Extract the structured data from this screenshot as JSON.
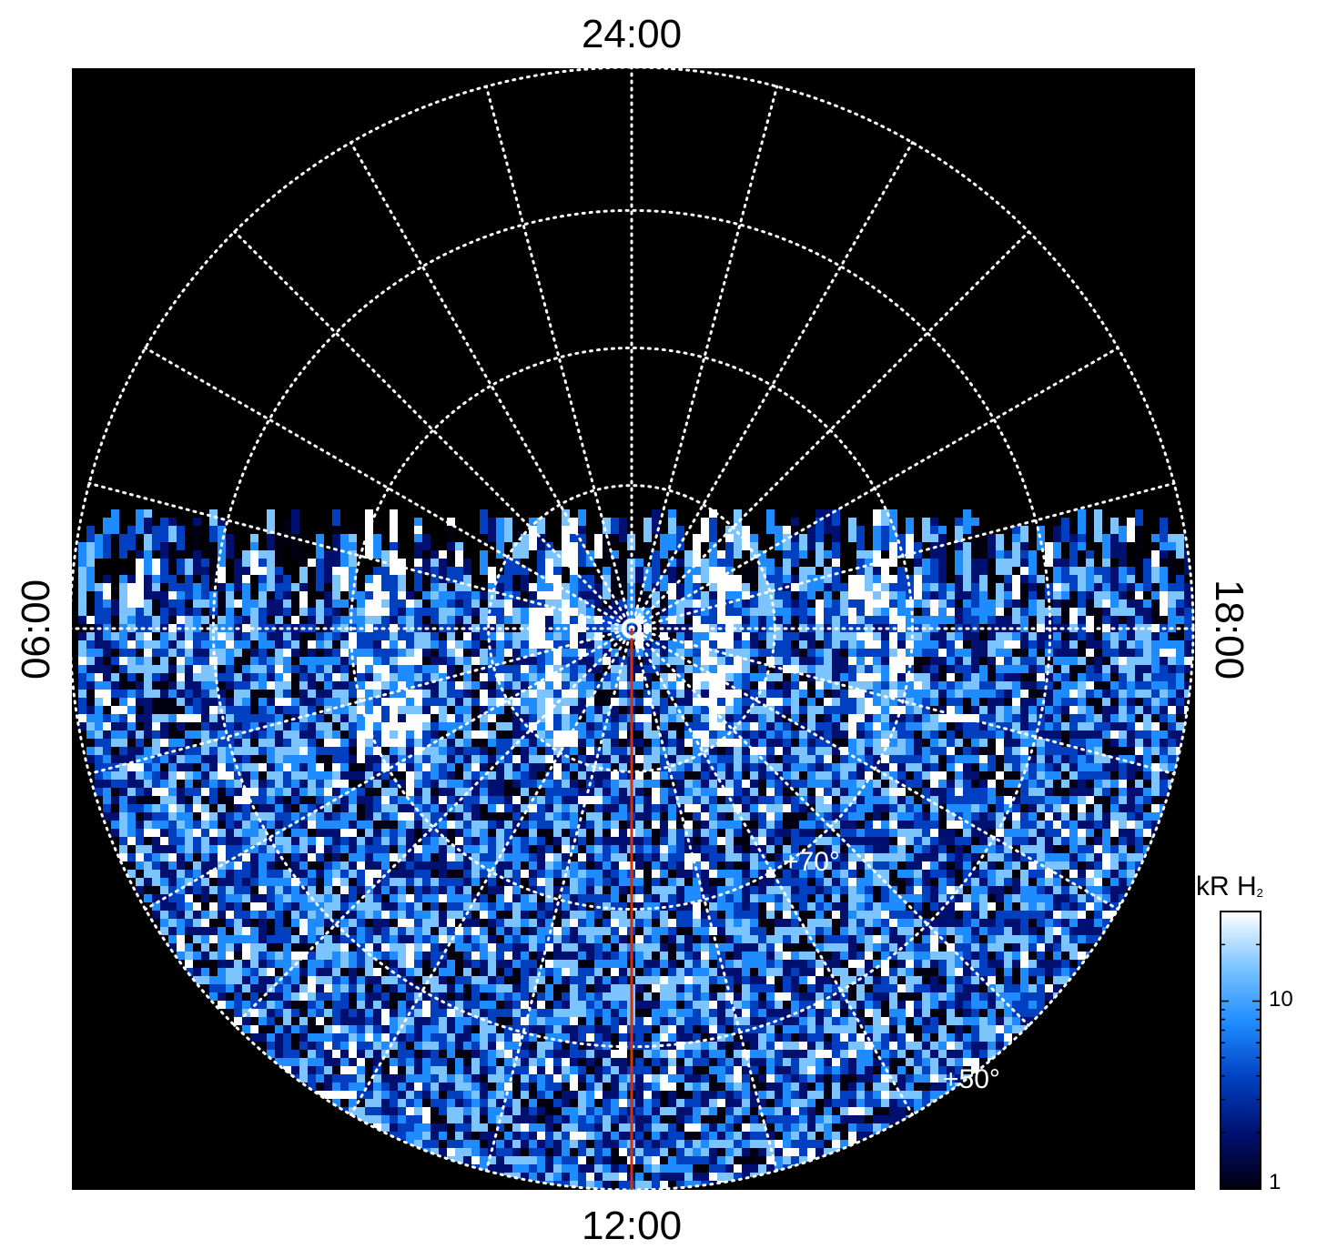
{
  "projection": {
    "type": "polar",
    "hemisphere": "north",
    "local_time_labels": {
      "top": "24:00",
      "bottom": "12:00",
      "left": "06:00",
      "right": "18:00"
    },
    "latitude_labels": [
      "+70°",
      "+50°"
    ],
    "meridian_color": "#cc3311",
    "grid_color": "#ffffff",
    "background_color": "#000000"
  },
  "colorbar": {
    "title": "kR H",
    "title_subscript": "2",
    "scale": "log",
    "range": [
      1,
      30
    ],
    "tick_labels": [
      "10",
      "1"
    ],
    "colors": [
      "#000010",
      "#001070",
      "#0040c0",
      "#1e8cff",
      "#7cc4ff",
      "#ffffff"
    ]
  }
}
